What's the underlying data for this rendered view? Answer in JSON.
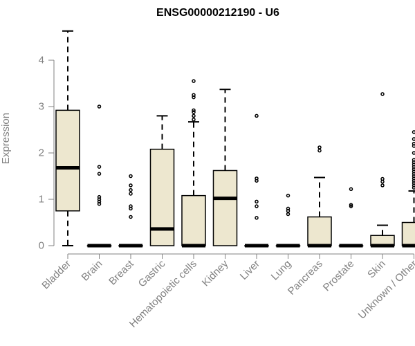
{
  "chart_data": {
    "type": "box",
    "title": "ENSG00000212190 - U6",
    "xlabel": "",
    "ylabel": "Expression",
    "ylim": [
      0,
      4.7
    ],
    "yticks": [
      0,
      1,
      2,
      3,
      4
    ],
    "grid": false,
    "legend": "none",
    "box_fill": "#ede7cf",
    "categories": [
      "Bladder",
      "Brain",
      "Breast",
      "Gastric",
      "Hematopoietic cells",
      "Kidney",
      "Liver",
      "Lung",
      "Pancreas",
      "Prostate",
      "Skin",
      "Unknown / Other"
    ],
    "boxes": [
      {
        "name": "Bladder",
        "min": 0,
        "q1": 0.75,
        "median": 1.68,
        "q3": 2.92,
        "max": 4.63,
        "outliers": []
      },
      {
        "name": "Brain",
        "min": 0,
        "q1": 0,
        "median": 0,
        "q3": 0,
        "max": 0,
        "outliers": [
          0.9,
          0.95,
          1.0,
          1.05,
          1.55,
          1.7,
          3.0
        ]
      },
      {
        "name": "Breast",
        "min": 0,
        "q1": 0,
        "median": 0,
        "q3": 0,
        "max": 0,
        "outliers": [
          0.62,
          0.8,
          0.85,
          1.12,
          1.2,
          1.3,
          1.5
        ]
      },
      {
        "name": "Gastric",
        "min": 0,
        "q1": 0,
        "median": 0.36,
        "q3": 2.08,
        "max": 2.8,
        "outliers": []
      },
      {
        "name": "Hematopoietic cells",
        "min": 0,
        "q1": 0,
        "median": 0,
        "q3": 1.08,
        "max": 2.67,
        "outliers": [
          2.72,
          2.8,
          2.88,
          2.92,
          3.2,
          3.25,
          3.55
        ]
      },
      {
        "name": "Kidney",
        "min": 0,
        "q1": 0,
        "median": 1.02,
        "q3": 1.62,
        "max": 3.37,
        "outliers": []
      },
      {
        "name": "Liver",
        "min": 0,
        "q1": 0,
        "median": 0,
        "q3": 0,
        "max": 0,
        "outliers": [
          0.6,
          0.85,
          0.95,
          1.4,
          1.45,
          2.8
        ]
      },
      {
        "name": "Lung",
        "min": 0,
        "q1": 0,
        "median": 0,
        "q3": 0,
        "max": 0,
        "outliers": [
          0.68,
          0.75,
          0.8,
          1.08
        ]
      },
      {
        "name": "Pancreas",
        "min": 0,
        "q1": 0,
        "median": 0,
        "q3": 0.62,
        "max": 1.47,
        "outliers": [
          2.05,
          2.12
        ]
      },
      {
        "name": "Prostate",
        "min": 0,
        "q1": 0,
        "median": 0,
        "q3": 0,
        "max": 0,
        "outliers": [
          0.85,
          0.88,
          1.22
        ]
      },
      {
        "name": "Skin",
        "min": 0,
        "q1": 0,
        "median": 0,
        "q3": 0.22,
        "max": 0.44,
        "outliers": [
          1.3,
          1.38,
          1.44,
          3.27
        ]
      },
      {
        "name": "Unknown / Other",
        "min": 0,
        "q1": 0,
        "median": 0,
        "q3": 0.5,
        "max": 1.18,
        "outliers": [
          1.25,
          1.3,
          1.35,
          1.4,
          1.45,
          1.5,
          1.55,
          1.6,
          1.65,
          1.7,
          1.75,
          1.8,
          1.85,
          2.0,
          2.15,
          2.2,
          2.3,
          2.45
        ]
      }
    ]
  }
}
